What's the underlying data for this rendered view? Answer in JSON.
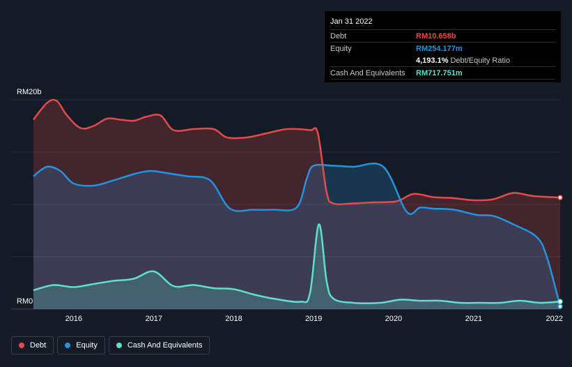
{
  "chart_data": {
    "type": "area",
    "x_type": "date",
    "x_ticks": [
      "2016",
      "2017",
      "2018",
      "2019",
      "2020",
      "2021",
      "2022"
    ],
    "y_ticks": [
      "RM0",
      "RM20b"
    ],
    "ylim": [
      0,
      20
    ],
    "y_unit": "billion RM",
    "grid": true,
    "legend_placement": "bottom-left",
    "series": [
      {
        "name": "Debt",
        "color": "#e64a4a",
        "points": [
          [
            "2015-07-01",
            18.1
          ],
          [
            "2015-09-01",
            19.7
          ],
          [
            "2015-10-15",
            19.9
          ],
          [
            "2015-12-01",
            18.5
          ],
          [
            "2016-02-01",
            17.3
          ],
          [
            "2016-04-01",
            17.5
          ],
          [
            "2016-06-01",
            18.2
          ],
          [
            "2016-08-01",
            18.1
          ],
          [
            "2016-10-01",
            18.0
          ],
          [
            "2016-12-01",
            18.4
          ],
          [
            "2017-02-01",
            18.5
          ],
          [
            "2017-04-01",
            17.1
          ],
          [
            "2017-07-01",
            17.2
          ],
          [
            "2017-10-01",
            17.2
          ],
          [
            "2017-12-01",
            16.4
          ],
          [
            "2018-03-01",
            16.4
          ],
          [
            "2018-06-01",
            16.8
          ],
          [
            "2018-09-01",
            17.2
          ],
          [
            "2018-12-15",
            17.1
          ],
          [
            "2019-01-20",
            16.8
          ],
          [
            "2019-03-01",
            11.2
          ],
          [
            "2019-04-01",
            10.1
          ],
          [
            "2019-07-01",
            10.1
          ],
          [
            "2019-10-01",
            10.2
          ],
          [
            "2020-01-15",
            10.3
          ],
          [
            "2020-04-01",
            11.0
          ],
          [
            "2020-07-01",
            10.7
          ],
          [
            "2020-10-01",
            10.6
          ],
          [
            "2021-01-01",
            10.4
          ],
          [
            "2021-04-01",
            10.5
          ],
          [
            "2021-07-01",
            11.1
          ],
          [
            "2021-10-01",
            10.8
          ],
          [
            "2022-01-31",
            10.658
          ]
        ]
      },
      {
        "name": "Equity",
        "color": "#2394df",
        "points": [
          [
            "2015-07-01",
            12.7
          ],
          [
            "2015-09-01",
            13.6
          ],
          [
            "2015-11-01",
            13.2
          ],
          [
            "2016-01-01",
            12.0
          ],
          [
            "2016-04-01",
            11.8
          ],
          [
            "2016-07-01",
            12.3
          ],
          [
            "2016-10-01",
            12.9
          ],
          [
            "2016-12-15",
            13.2
          ],
          [
            "2017-03-01",
            13.0
          ],
          [
            "2017-06-01",
            12.7
          ],
          [
            "2017-09-15",
            12.3
          ],
          [
            "2017-12-15",
            9.6
          ],
          [
            "2018-04-01",
            9.5
          ],
          [
            "2018-07-01",
            9.5
          ],
          [
            "2018-10-15",
            9.7
          ],
          [
            "2018-12-01",
            12.5
          ],
          [
            "2019-01-01",
            13.7
          ],
          [
            "2019-04-01",
            13.7
          ],
          [
            "2019-07-01",
            13.6
          ],
          [
            "2019-11-15",
            13.6
          ],
          [
            "2020-03-01",
            9.3
          ],
          [
            "2020-05-01",
            9.7
          ],
          [
            "2020-07-01",
            9.6
          ],
          [
            "2020-10-01",
            9.5
          ],
          [
            "2021-01-15",
            9.0
          ],
          [
            "2021-04-01",
            8.9
          ],
          [
            "2021-07-01",
            8.1
          ],
          [
            "2021-10-15",
            6.9
          ],
          [
            "2021-12-01",
            5.0
          ],
          [
            "2022-01-31",
            0.254
          ]
        ]
      },
      {
        "name": "Cash And Equivalents",
        "color": "#5fe0cd",
        "points": [
          [
            "2015-07-01",
            1.8
          ],
          [
            "2015-10-01",
            2.3
          ],
          [
            "2016-01-01",
            2.1
          ],
          [
            "2016-04-01",
            2.4
          ],
          [
            "2016-07-01",
            2.7
          ],
          [
            "2016-10-01",
            2.9
          ],
          [
            "2017-01-01",
            3.6
          ],
          [
            "2017-04-01",
            2.2
          ],
          [
            "2017-07-01",
            2.3
          ],
          [
            "2017-10-01",
            2.0
          ],
          [
            "2018-01-01",
            1.9
          ],
          [
            "2018-04-01",
            1.4
          ],
          [
            "2018-07-01",
            1.0
          ],
          [
            "2018-11-01",
            0.7
          ],
          [
            "2018-12-15",
            1.5
          ],
          [
            "2019-01-25",
            8.1
          ],
          [
            "2019-03-01",
            2.7
          ],
          [
            "2019-04-01",
            1.0
          ],
          [
            "2019-07-01",
            0.6
          ],
          [
            "2019-11-01",
            0.6
          ],
          [
            "2020-02-01",
            0.9
          ],
          [
            "2020-05-01",
            0.8
          ],
          [
            "2020-08-01",
            0.8
          ],
          [
            "2020-11-01",
            0.6
          ],
          [
            "2021-02-01",
            0.6
          ],
          [
            "2021-05-01",
            0.6
          ],
          [
            "2021-08-01",
            0.8
          ],
          [
            "2021-11-01",
            0.6
          ],
          [
            "2022-01-31",
            0.718
          ]
        ]
      }
    ]
  },
  "tooltip": {
    "date": "Jan 31 2022",
    "rows": [
      {
        "key": "Debt",
        "value": "RM10.658b",
        "color": "#e64a4a"
      },
      {
        "key": "Equity",
        "value": "RM254.177m",
        "color": "#2394df"
      },
      {
        "key": "",
        "value": "4,193.1%",
        "sub": "Debt/Equity Ratio",
        "color": "#ffffff"
      },
      {
        "key": "Cash And Equivalents",
        "value": "RM717.751m",
        "color": "#5fe0cd"
      }
    ]
  },
  "legend": [
    {
      "label": "Debt",
      "color": "#e64a4a"
    },
    {
      "label": "Equity",
      "color": "#2394df"
    },
    {
      "label": "Cash And Equivalents",
      "color": "#5fe0cd"
    }
  ]
}
